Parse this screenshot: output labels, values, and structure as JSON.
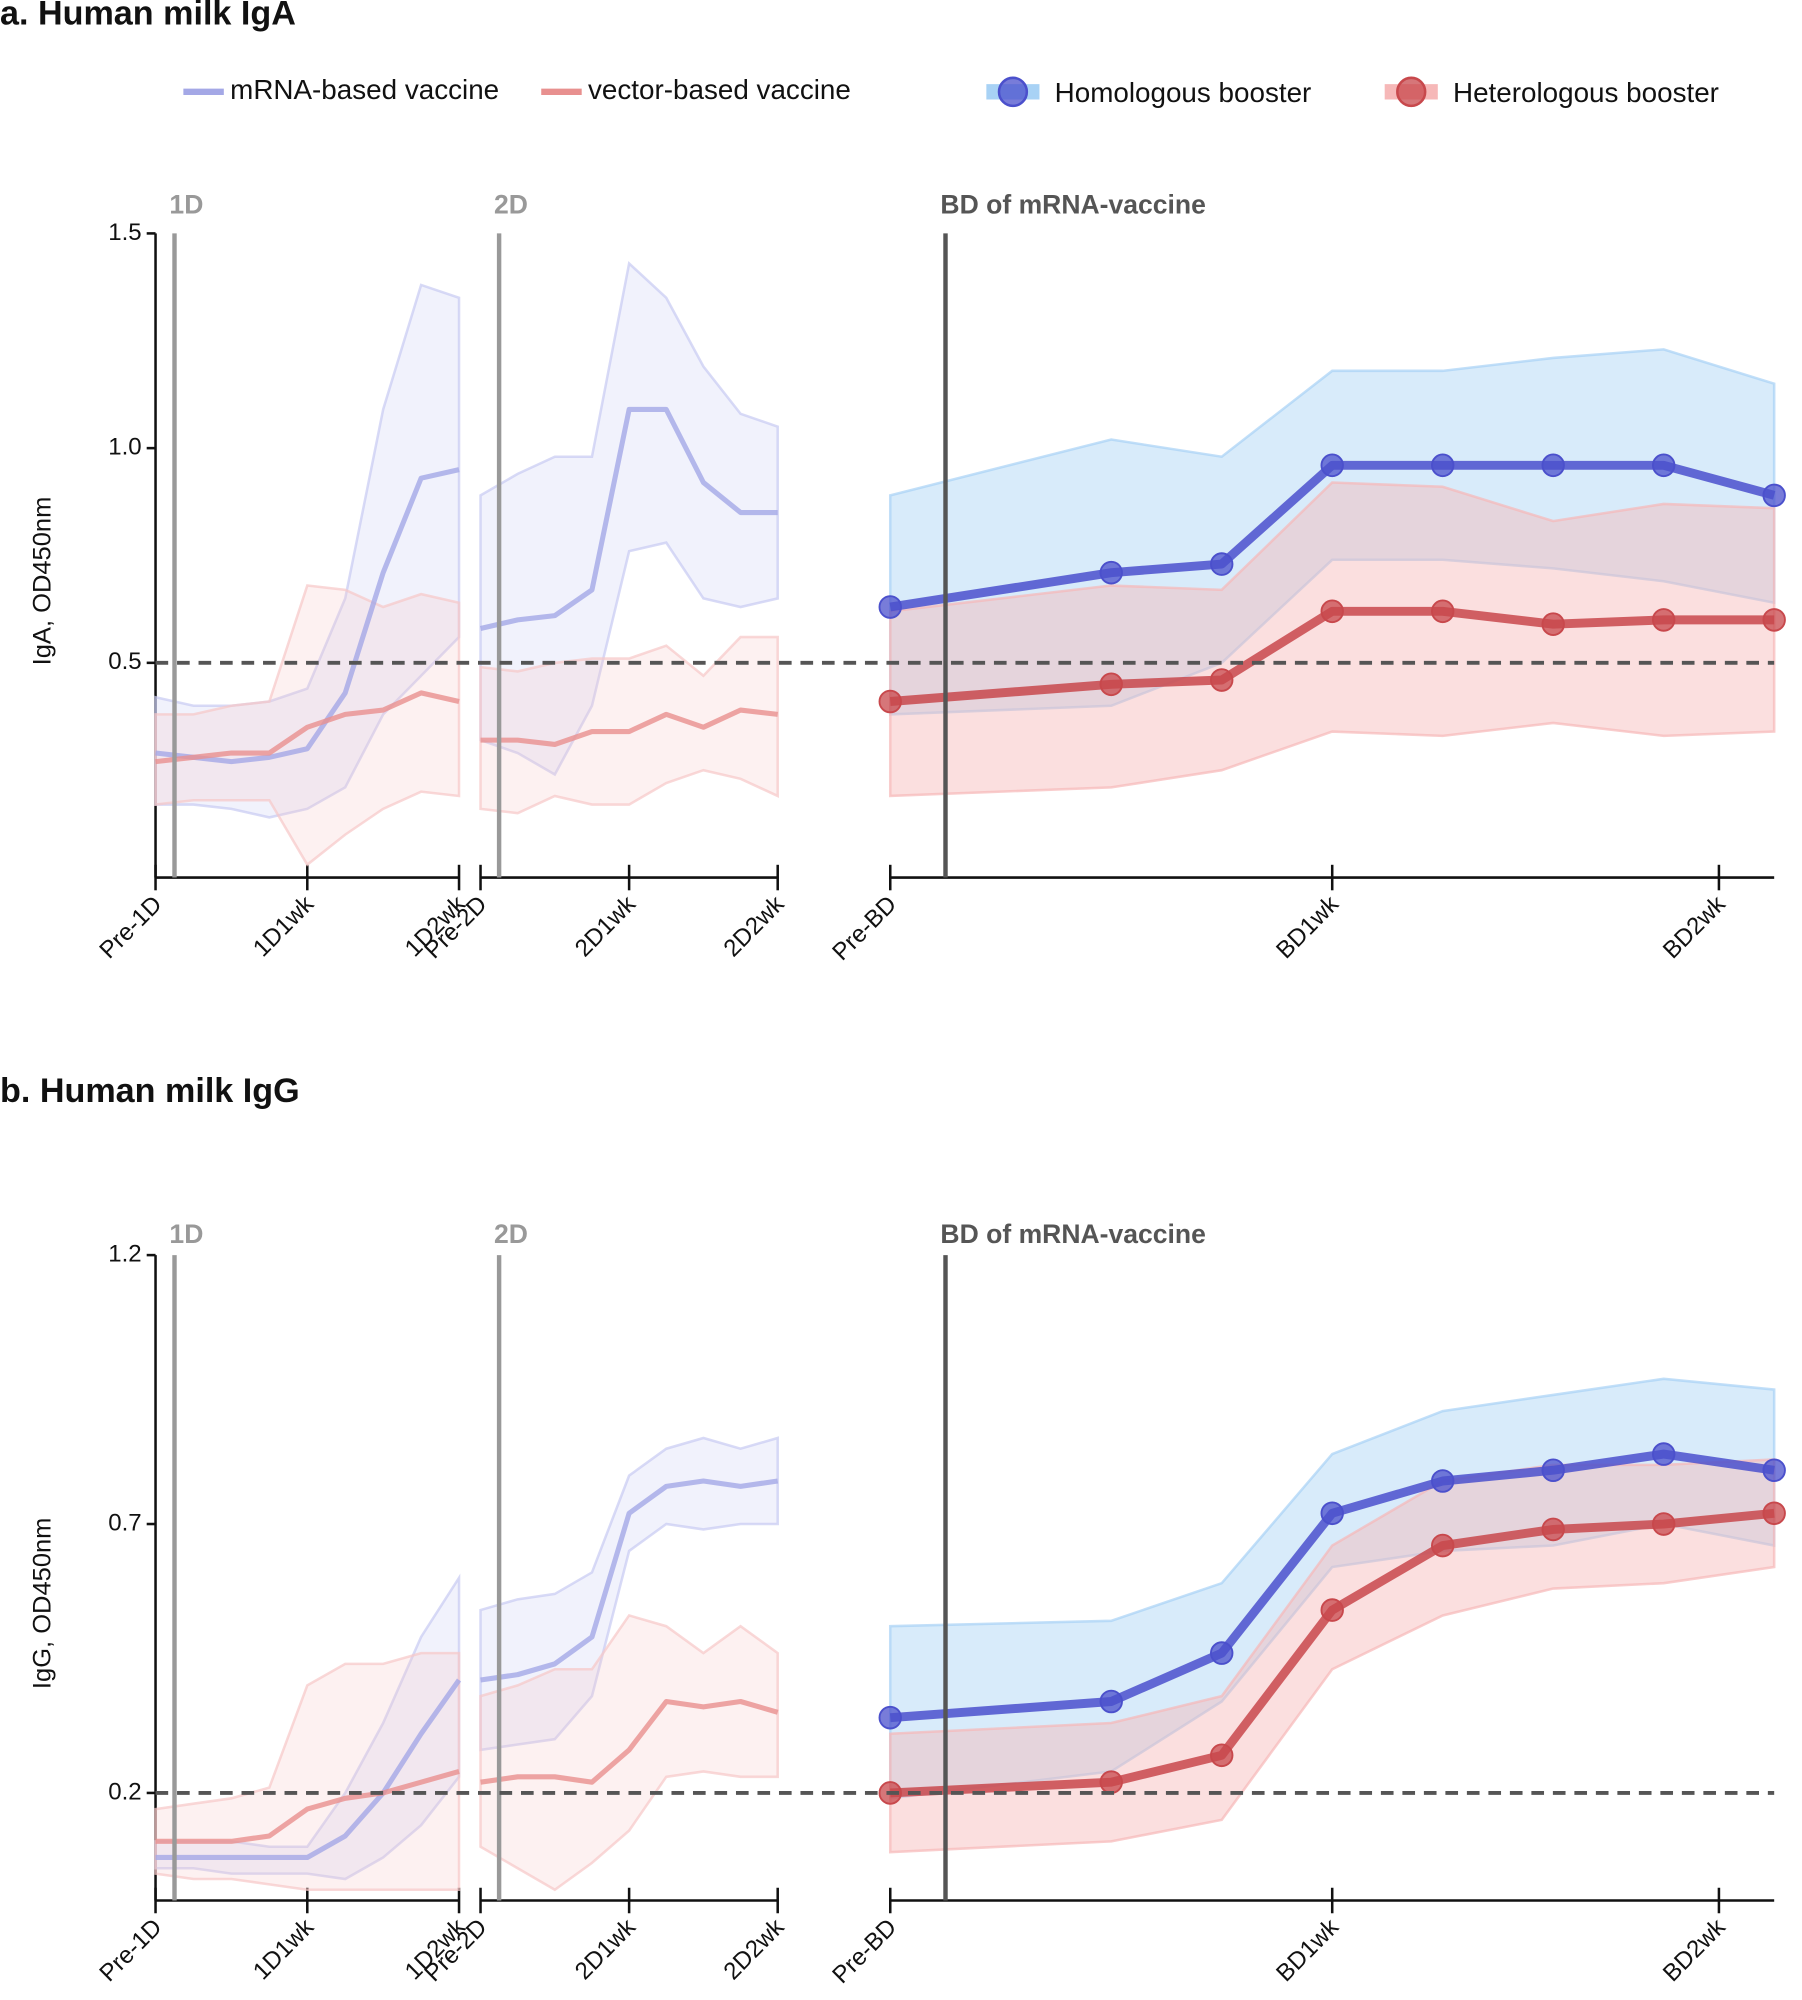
{
  "chart_data": [
    {
      "type": "line",
      "title": "a. Human milk IgA",
      "ylabel": "IgA, OD450nm",
      "ylim": [
        0,
        1.5
      ],
      "yticks": [
        0.5,
        {
          "value": 1,
          "label": "1.0"
        },
        1.5
      ],
      "threshold": 0.5,
      "panels": [
        {
          "x": [
            0,
            1,
            2,
            3,
            4,
            5,
            6,
            7,
            8
          ],
          "xlim": [
            0,
            8
          ],
          "xticks": [
            {
              "value": 0,
              "label": "Pre-1D"
            },
            {
              "value": 4,
              "label": "1D1wk"
            },
            {
              "value": 8,
              "label": "1D2wk"
            }
          ],
          "event": {
            "label": "1D",
            "x": 0.5,
            "color": "#999999"
          },
          "markers": false,
          "series": [
            {
              "name": "mRNA-based vaccine",
              "color": "#a4a8e6",
              "band_color": "#c8cbf2",
              "values": [
                0.29,
                0.28,
                0.27,
                0.28,
                0.3,
                0.43,
                0.71,
                0.93,
                0.95
              ],
              "upper": [
                0.42,
                0.4,
                0.4,
                0.41,
                0.44,
                0.65,
                1.09,
                1.38,
                1.35
              ],
              "lower": [
                0.17,
                0.17,
                0.16,
                0.14,
                0.16,
                0.21,
                0.38,
                0.47,
                0.56
              ]
            },
            {
              "name": "vector-based vaccine",
              "color": "#e8908f",
              "band_color": "#f6c8c8",
              "values": [
                0.27,
                0.28,
                0.29,
                0.29,
                0.35,
                0.38,
                0.39,
                0.43,
                0.41
              ],
              "upper": [
                0.38,
                0.38,
                0.4,
                0.41,
                0.68,
                0.67,
                0.63,
                0.66,
                0.64
              ],
              "lower": [
                0.17,
                0.18,
                0.18,
                0.18,
                0.03,
                0.1,
                0.16,
                0.2,
                0.19
              ]
            }
          ]
        },
        {
          "x": [
            0,
            1,
            2,
            3,
            4,
            5,
            6,
            7,
            8
          ],
          "xlim": [
            0,
            8
          ],
          "xticks": [
            {
              "value": 0,
              "label": "Pre-2D"
            },
            {
              "value": 4,
              "label": "2D1wk"
            },
            {
              "value": 8,
              "label": "2D2wk"
            }
          ],
          "event": {
            "label": "2D",
            "x": 0.5,
            "color": "#999999"
          },
          "markers": false,
          "series": [
            {
              "name": "mRNA-based vaccine",
              "color": "#a4a8e6",
              "band_color": "#c8cbf2",
              "values": [
                0.58,
                0.6,
                0.61,
                0.67,
                1.09,
                1.09,
                0.92,
                0.85,
                0.85
              ],
              "upper": [
                0.89,
                0.94,
                0.98,
                0.98,
                1.43,
                1.35,
                1.19,
                1.08,
                1.05
              ],
              "lower": [
                0.32,
                0.29,
                0.24,
                0.4,
                0.76,
                0.78,
                0.65,
                0.63,
                0.65
              ]
            },
            {
              "name": "vector-based vaccine",
              "color": "#e8908f",
              "band_color": "#f6c8c8",
              "values": [
                0.32,
                0.32,
                0.31,
                0.34,
                0.34,
                0.38,
                0.35,
                0.39,
                0.38
              ],
              "upper": [
                0.49,
                0.48,
                0.5,
                0.51,
                0.51,
                0.54,
                0.47,
                0.56,
                0.56
              ],
              "lower": [
                0.16,
                0.15,
                0.19,
                0.17,
                0.17,
                0.22,
                0.25,
                0.23,
                0.19
              ]
            }
          ]
        },
        {
          "x": [
            0,
            2,
            3,
            4,
            5,
            6,
            7,
            8
          ],
          "xlim": [
            0,
            8
          ],
          "xticks": [
            {
              "value": 0,
              "label": "Pre-BD"
            },
            {
              "value": 4,
              "label": "BD1wk"
            },
            {
              "value": 7.5,
              "label": "BD2wk"
            }
          ],
          "event": {
            "label": "BD of mRNA-vaccine",
            "x": 0.5,
            "color": "#555555"
          },
          "markers": true,
          "series": [
            {
              "name": "Homologous booster",
              "color": "#4b50cc",
              "band_color": "#a8d2f5",
              "values": [
                0.63,
                0.71,
                0.73,
                0.96,
                0.96,
                0.96,
                0.96,
                0.89
              ],
              "upper": [
                0.89,
                1.02,
                0.98,
                1.18,
                1.18,
                1.21,
                1.23,
                1.15
              ],
              "lower": [
                0.38,
                0.4,
                0.5,
                0.74,
                0.74,
                0.72,
                0.69,
                0.64
              ]
            },
            {
              "name": "Heterologous booster",
              "color": "#c8484c",
              "band_color": "#f6b8b8",
              "values": [
                0.41,
                0.45,
                0.46,
                0.62,
                0.62,
                0.59,
                0.6,
                0.6
              ],
              "upper": [
                0.62,
                0.68,
                0.67,
                0.92,
                0.91,
                0.83,
                0.87,
                0.86
              ],
              "lower": [
                0.19,
                0.21,
                0.25,
                0.34,
                0.33,
                0.36,
                0.33,
                0.34
              ]
            }
          ]
        }
      ]
    },
    {
      "type": "line",
      "title": "b. Human milk IgG",
      "ylabel": "IgG, OD450nm",
      "ylim": [
        0,
        1.2
      ],
      "yticks": [
        0.2,
        0.7,
        1.2
      ],
      "threshold": 0.2,
      "panels": [
        {
          "x": [
            0,
            1,
            2,
            3,
            4,
            5,
            6,
            7,
            8
          ],
          "xlim": [
            0,
            8
          ],
          "xticks": [
            {
              "value": 0,
              "label": "Pre-1D"
            },
            {
              "value": 4,
              "label": "1D1wk"
            },
            {
              "value": 8,
              "label": "1D2wk"
            }
          ],
          "event": {
            "label": "1D",
            "x": 0.5,
            "color": "#999999"
          },
          "markers": false,
          "series": [
            {
              "name": "mRNA-based vaccine",
              "color": "#a4a8e6",
              "band_color": "#c8cbf2",
              "values": [
                0.08,
                0.08,
                0.08,
                0.08,
                0.08,
                0.12,
                0.2,
                0.31,
                0.41
              ],
              "upper": [
                0.11,
                0.11,
                0.11,
                0.1,
                0.1,
                0.2,
                0.33,
                0.49,
                0.6
              ],
              "lower": [
                0.06,
                0.06,
                0.05,
                0.05,
                0.05,
                0.04,
                0.08,
                0.14,
                0.23
              ]
            },
            {
              "name": "vector-based vaccine",
              "color": "#e8908f",
              "band_color": "#f6c8c8",
              "values": [
                0.11,
                0.11,
                0.11,
                0.12,
                0.17,
                0.19,
                0.2,
                0.22,
                0.24
              ],
              "upper": [
                0.17,
                0.18,
                0.19,
                0.21,
                0.4,
                0.44,
                0.44,
                0.46,
                0.46
              ],
              "lower": [
                0.05,
                0.04,
                0.04,
                0.03,
                0.02,
                0.02,
                0.02,
                0.02,
                0.02
              ]
            }
          ]
        },
        {
          "x": [
            0,
            1,
            2,
            3,
            4,
            5,
            6,
            7,
            8
          ],
          "xlim": [
            0,
            8
          ],
          "xticks": [
            {
              "value": 0,
              "label": "Pre-2D"
            },
            {
              "value": 4,
              "label": "2D1wk"
            },
            {
              "value": 8,
              "label": "2D2wk"
            }
          ],
          "event": {
            "label": "2D",
            "x": 0.5,
            "color": "#999999"
          },
          "markers": false,
          "series": [
            {
              "name": "mRNA-based vaccine",
              "color": "#a4a8e6",
              "band_color": "#c8cbf2",
              "values": [
                0.41,
                0.42,
                0.44,
                0.49,
                0.72,
                0.77,
                0.78,
                0.77,
                0.78
              ],
              "upper": [
                0.54,
                0.56,
                0.57,
                0.61,
                0.79,
                0.84,
                0.86,
                0.84,
                0.86
              ],
              "lower": [
                0.28,
                0.29,
                0.3,
                0.38,
                0.65,
                0.7,
                0.69,
                0.7,
                0.7
              ]
            },
            {
              "name": "vector-based vaccine",
              "color": "#e8908f",
              "band_color": "#f6c8c8",
              "values": [
                0.22,
                0.23,
                0.23,
                0.22,
                0.28,
                0.37,
                0.36,
                0.37,
                0.35
              ],
              "upper": [
                0.38,
                0.4,
                0.43,
                0.43,
                0.53,
                0.51,
                0.46,
                0.51,
                0.46
              ],
              "lower": [
                0.1,
                0.06,
                0.02,
                0.07,
                0.13,
                0.23,
                0.24,
                0.23,
                0.23
              ]
            }
          ]
        },
        {
          "x": [
            0,
            2,
            3,
            4,
            5,
            6,
            7,
            8
          ],
          "xlim": [
            0,
            8
          ],
          "xticks": [
            {
              "value": 0,
              "label": "Pre-BD"
            },
            {
              "value": 4,
              "label": "BD1wk"
            },
            {
              "value": 7.5,
              "label": "BD2wk"
            }
          ],
          "event": {
            "label": "BD of mRNA-vaccine",
            "x": 0.5,
            "color": "#555555"
          },
          "markers": true,
          "series": [
            {
              "name": "Homologous booster",
              "color": "#4b50cc",
              "band_color": "#a8d2f5",
              "values": [
                0.34,
                0.37,
                0.46,
                0.72,
                0.78,
                0.8,
                0.83,
                0.8
              ],
              "upper": [
                0.51,
                0.52,
                0.59,
                0.83,
                0.91,
                0.94,
                0.97,
                0.95
              ],
              "lower": [
                0.19,
                0.24,
                0.37,
                0.62,
                0.65,
                0.66,
                0.7,
                0.66
              ]
            },
            {
              "name": "Heterologous booster",
              "color": "#c8484c",
              "band_color": "#f6b8b8",
              "values": [
                0.2,
                0.22,
                0.27,
                0.54,
                0.66,
                0.69,
                0.7,
                0.72
              ],
              "upper": [
                0.31,
                0.33,
                0.38,
                0.66,
                0.78,
                0.81,
                0.81,
                0.82
              ],
              "lower": [
                0.09,
                0.11,
                0.15,
                0.43,
                0.53,
                0.58,
                0.59,
                0.62
              ]
            }
          ]
        }
      ]
    }
  ]
}
